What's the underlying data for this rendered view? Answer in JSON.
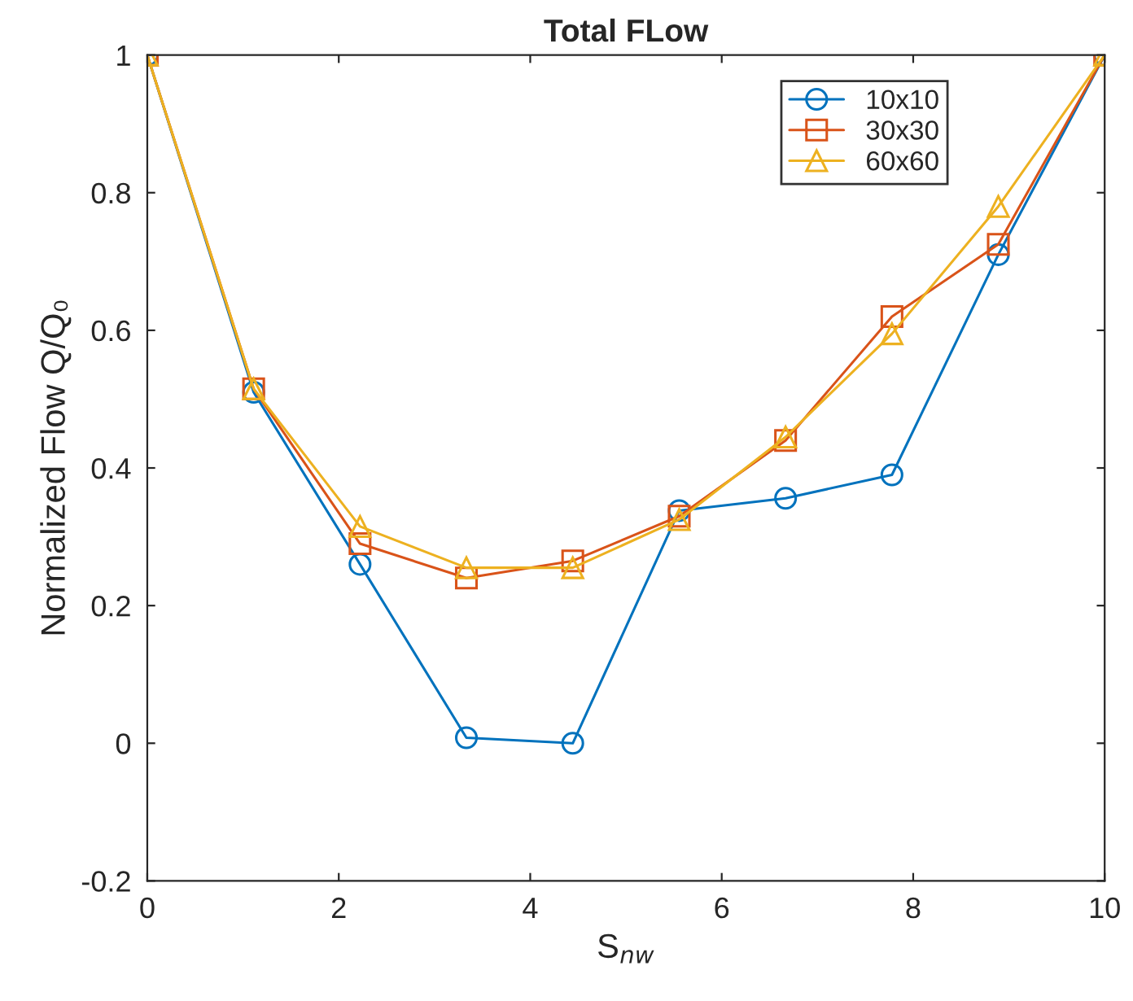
{
  "chart_data": {
    "type": "line",
    "title": "Total FLow",
    "xlabel": "S$_{nw}$",
    "ylabel": "Normalized Flow Q/Q₀",
    "x": [
      0,
      1.111,
      2.222,
      3.333,
      4.444,
      5.556,
      6.667,
      7.778,
      8.889,
      10
    ],
    "series": [
      {
        "name": "10x10",
        "color": "#0072bd",
        "marker": "circle",
        "values": [
          1,
          0.51,
          0.26,
          0.008,
          0.0,
          0.338,
          0.356,
          0.39,
          0.71,
          1
        ]
      },
      {
        "name": "30x30",
        "color": "#d95319",
        "marker": "square",
        "values": [
          1,
          0.515,
          0.29,
          0.24,
          0.265,
          0.33,
          0.44,
          0.62,
          0.725,
          1
        ]
      },
      {
        "name": "60x60",
        "color": "#edb120",
        "marker": "triangle",
        "values": [
          1,
          0.515,
          0.315,
          0.255,
          0.255,
          0.325,
          0.445,
          0.595,
          0.78,
          1
        ]
      }
    ],
    "xlim": [
      0,
      10
    ],
    "xticks": [
      0,
      2,
      4,
      6,
      8,
      10
    ],
    "ylim": [
      -0.2,
      1
    ],
    "yticks": [
      -0.2,
      0,
      0.2,
      0.4,
      0.6,
      0.8,
      1
    ],
    "legend": "top right",
    "grid": false,
    "line_style": "solid"
  }
}
